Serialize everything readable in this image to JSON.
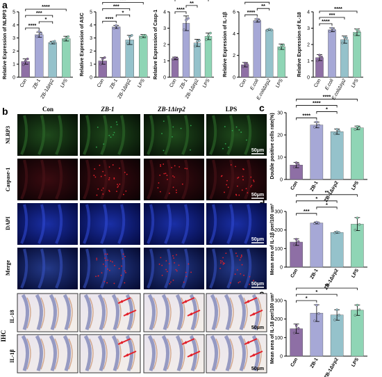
{
  "panel_letters": {
    "a": "a",
    "b": "b",
    "c": "c",
    "d": "d",
    "e": "e"
  },
  "colors": {
    "con": "#8e6fa5",
    "zb1": "#a6a8d6",
    "mut": "#95c2cb",
    "lps": "#8fd5b5",
    "green": "#2fa84f",
    "red": "#e3202a",
    "blue": "#2033a8"
  },
  "micrograph": {
    "columns": [
      "Con",
      "ZB-1",
      "ZB-1Δirp2",
      "LPS"
    ],
    "rows": [
      "NLRP3",
      "Caspase-1",
      "DAPI",
      "Merge"
    ],
    "ihc_label": "IHC",
    "ihc_rows": [
      "IL-18",
      "IL-1β"
    ],
    "scale": "50μm"
  },
  "chart_data": [
    {
      "type": "bar",
      "ylabel": "Relative Expression of NLRP3",
      "categories": [
        "Con",
        "ZB-1",
        "ZB-1Δirp2",
        "LPS"
      ],
      "values": [
        1.2,
        3.25,
        2.65,
        2.95
      ],
      "errors": [
        0.2,
        0.2,
        0.1,
        0.18
      ],
      "points": [
        [
          0.95,
          1.25,
          1.4
        ],
        [
          3.1,
          3.5,
          3.35
        ],
        [
          2.6,
          2.7,
          2.75
        ],
        [
          2.85,
          3.0,
          3.1
        ]
      ],
      "ylim": [
        0,
        5
      ],
      "yticks": [
        0,
        1,
        2,
        3,
        4,
        5
      ],
      "significance": [
        {
          "from": 0,
          "to": 1,
          "label": "****"
        },
        {
          "from": 1,
          "to": 2,
          "label": "*"
        },
        {
          "from": 0,
          "to": 2,
          "label": "***"
        },
        {
          "from": 0,
          "to": 3,
          "label": "****"
        }
      ]
    },
    {
      "type": "bar",
      "ylabel": "Relative Expression of ASC",
      "categories": [
        "Con",
        "ZB-1",
        "ZB-1Δirp2",
        "LPS"
      ],
      "values": [
        1.25,
        3.85,
        2.85,
        3.15
      ],
      "errors": [
        0.25,
        0.12,
        0.35,
        0.12
      ],
      "points": [
        [
          1.0,
          1.4,
          1.5
        ],
        [
          3.75,
          3.95,
          3.8
        ],
        [
          2.6,
          3.1,
          3.2
        ],
        [
          3.05,
          3.2,
          3.2
        ]
      ],
      "ylim": [
        0,
        5
      ],
      "yticks": [
        0,
        1,
        2,
        3,
        4,
        5
      ],
      "significance": [
        {
          "from": 0,
          "to": 1,
          "label": "****"
        },
        {
          "from": 1,
          "to": 2,
          "label": "*"
        },
        {
          "from": 0,
          "to": 2,
          "label": "***"
        },
        {
          "from": 0,
          "to": 3,
          "label": "***"
        }
      ]
    },
    {
      "type": "bar",
      "ylabel": "Relative Expression of Casp-1",
      "categories": [
        "Con",
        "ZB-1",
        "ZB-1Δirp2",
        "LPS"
      ],
      "values": [
        1.15,
        3.3,
        2.1,
        2.5
      ],
      "errors": [
        0.08,
        0.45,
        0.22,
        0.2
      ],
      "points": [
        [
          1.1,
          1.2,
          1.15
        ],
        [
          2.9,
          3.5,
          3.6
        ],
        [
          1.9,
          2.2,
          2.25
        ],
        [
          2.3,
          2.55,
          2.7
        ]
      ],
      "ylim": [
        0,
        4
      ],
      "yticks": [
        0,
        1,
        2,
        3,
        4
      ],
      "significance": [
        {
          "from": 0,
          "to": 1,
          "label": "****"
        },
        {
          "from": 1,
          "to": 2,
          "label": "**"
        },
        {
          "from": 0,
          "to": 3,
          "label": "*"
        }
      ]
    },
    {
      "type": "bar",
      "ylabel": "Relative Expression of IL-1β",
      "categories": [
        "Con",
        "E.coli",
        "E.coliΔirp2",
        "LPS"
      ],
      "values": [
        1.15,
        5.2,
        4.35,
        2.8
      ],
      "errors": [
        0.2,
        0.15,
        0.05,
        0.25
      ],
      "points": [
        [
          0.95,
          1.3,
          1.2
        ],
        [
          5.1,
          5.35,
          5.2
        ],
        [
          4.3,
          4.4,
          4.35
        ],
        [
          2.6,
          2.9,
          2.95
        ]
      ],
      "ylim": [
        0,
        6
      ],
      "yticks": [
        0,
        2,
        4,
        6
      ],
      "significance": [
        {
          "from": 0,
          "to": 1,
          "label": "****"
        },
        {
          "from": 1,
          "to": 2,
          "label": "**"
        },
        {
          "from": 0,
          "to": 2,
          "label": "****"
        },
        {
          "from": 0,
          "to": 3,
          "label": "****"
        }
      ]
    },
    {
      "type": "bar",
      "ylabel": "Relative Expression of IL-18",
      "categories": [
        "Con",
        "E.coli",
        "E.coliΔirp2",
        "LPS"
      ],
      "values": [
        1.2,
        2.9,
        2.3,
        2.75
      ],
      "errors": [
        0.18,
        0.12,
        0.22,
        0.2
      ],
      "points": [
        [
          1.0,
          1.35,
          1.25
        ],
        [
          2.8,
          3.0,
          2.9
        ],
        [
          2.1,
          2.45,
          2.4
        ],
        [
          2.6,
          2.9,
          2.8
        ]
      ],
      "ylim": [
        0,
        4
      ],
      "yticks": [
        0,
        1,
        2,
        3,
        4
      ],
      "significance": [
        {
          "from": 0,
          "to": 1,
          "label": "****"
        },
        {
          "from": 0,
          "to": 2,
          "label": "***"
        },
        {
          "from": 0,
          "to": 3,
          "label": "****"
        }
      ]
    },
    {
      "type": "bar",
      "ylabel": "Double positive cells rate(%)",
      "categories": [
        "Con",
        "ZB-1",
        "ZB-1Δirp2",
        "LPS"
      ],
      "values": [
        6.5,
        24.5,
        21.5,
        23.2
      ],
      "errors": [
        1.2,
        1.3,
        1.2,
        0.8
      ],
      "points": [
        [
          5.5,
          7.5,
          6.8
        ],
        [
          23.5,
          25.8,
          24.5
        ],
        [
          20.5,
          22.5,
          21.8
        ],
        [
          22.5,
          23.8,
          23.4
        ]
      ],
      "ylim": [
        0,
        30
      ],
      "yticks": [
        0,
        10,
        20,
        30
      ],
      "significance": [
        {
          "from": 0,
          "to": 1,
          "label": "****"
        },
        {
          "from": 1,
          "to": 2,
          "label": "*"
        },
        {
          "from": 0,
          "to": 2,
          "label": "****"
        },
        {
          "from": 0,
          "to": 3,
          "label": "****"
        }
      ]
    },
    {
      "type": "bar",
      "ylabel": "Mean area of IL-1β per/100 um²",
      "categories": [
        "Con",
        "ZB-1",
        "ZB-1Δirp2",
        "LPS"
      ],
      "values": [
        135,
        238,
        187,
        232
      ],
      "errors": [
        18,
        5,
        4,
        35
      ],
      "points": [
        [
          120,
          150,
          138
        ],
        [
          235,
          242,
          238
        ],
        [
          185,
          190,
          187
        ],
        [
          200,
          265,
          230
        ]
      ],
      "ylim": [
        0,
        300
      ],
      "yticks": [
        0,
        100,
        200,
        300
      ],
      "significance": [
        {
          "from": 0,
          "to": 1,
          "label": "***"
        },
        {
          "from": 1,
          "to": 2,
          "label": "*"
        },
        {
          "from": 0,
          "to": 2,
          "label": "*"
        },
        {
          "from": 0,
          "to": 3,
          "label": "**"
        }
      ]
    },
    {
      "type": "bar",
      "ylabel": "Mean area of IL-18 per/100 um²",
      "categories": [
        "Con",
        "ZB-1",
        "ZB-1Δirp2",
        "LPS"
      ],
      "values": [
        148,
        232,
        222,
        248
      ],
      "errors": [
        25,
        45,
        28,
        28
      ],
      "points": [
        [
          125,
          165,
          150
        ],
        [
          190,
          275,
          230
        ],
        [
          195,
          250,
          222
        ],
        [
          220,
          275,
          250
        ]
      ],
      "ylim": [
        0,
        300
      ],
      "yticks": [
        0,
        100,
        200,
        300
      ],
      "significance": [
        {
          "from": 0,
          "to": 1,
          "label": "*"
        },
        {
          "from": 0,
          "to": 2,
          "label": "*"
        },
        {
          "from": 0,
          "to": 3,
          "label": "**"
        }
      ]
    }
  ]
}
